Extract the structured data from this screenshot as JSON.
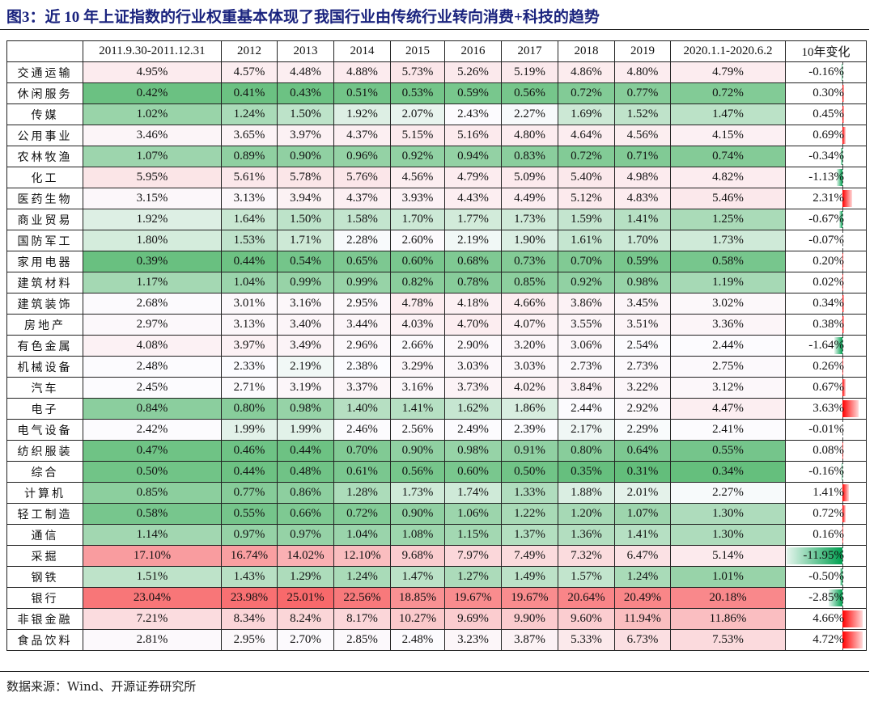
{
  "title": "图3：近 10 年上证指数的行业权重基本体现了我国行业由传统行业转向消费+科技的趋势",
  "source": "数据来源：Wind、开源证券研究所",
  "colors": {
    "low": "#63BE7B",
    "mid": "#FCFCFF",
    "high": "#F8696B",
    "bar_positive": "#FF0000",
    "bar_negative": "#00A050",
    "title": "#1A237E"
  },
  "table": {
    "headers": [
      "",
      "2011.9.30-2011.12.31",
      "2012",
      "2013",
      "2014",
      "2015",
      "2016",
      "2017",
      "2018",
      "2019",
      "2020.1.1-2020.6.2",
      "10年变化"
    ],
    "rows": [
      {
        "industry": "交通运输",
        "values": [
          "4.95%",
          "4.57%",
          "4.48%",
          "4.88%",
          "5.73%",
          "5.26%",
          "5.19%",
          "4.86%",
          "4.80%",
          "4.79%"
        ],
        "change": "-0.16%"
      },
      {
        "industry": "休闲服务",
        "values": [
          "0.42%",
          "0.41%",
          "0.43%",
          "0.51%",
          "0.53%",
          "0.59%",
          "0.56%",
          "0.72%",
          "0.77%",
          "0.72%"
        ],
        "change": "0.30%"
      },
      {
        "industry": "传媒",
        "values": [
          "1.02%",
          "1.24%",
          "1.50%",
          "1.92%",
          "2.07%",
          "2.43%",
          "2.27%",
          "1.69%",
          "1.52%",
          "1.47%"
        ],
        "change": "0.45%"
      },
      {
        "industry": "公用事业",
        "values": [
          "3.46%",
          "3.65%",
          "3.97%",
          "4.37%",
          "5.15%",
          "5.16%",
          "4.80%",
          "4.64%",
          "4.56%",
          "4.15%"
        ],
        "change": "0.69%"
      },
      {
        "industry": "农林牧渔",
        "values": [
          "1.07%",
          "0.89%",
          "0.90%",
          "0.96%",
          "0.92%",
          "0.94%",
          "0.83%",
          "0.72%",
          "0.71%",
          "0.74%"
        ],
        "change": "-0.34%"
      },
      {
        "industry": "化工",
        "values": [
          "5.95%",
          "5.61%",
          "5.78%",
          "5.76%",
          "4.56%",
          "4.79%",
          "5.09%",
          "5.40%",
          "4.98%",
          "4.82%"
        ],
        "change": "-1.13%"
      },
      {
        "industry": "医药生物",
        "values": [
          "3.15%",
          "3.13%",
          "3.94%",
          "4.37%",
          "3.93%",
          "4.43%",
          "4.49%",
          "5.12%",
          "4.83%",
          "5.46%"
        ],
        "change": "2.31%"
      },
      {
        "industry": "商业贸易",
        "values": [
          "1.92%",
          "1.64%",
          "1.50%",
          "1.58%",
          "1.70%",
          "1.77%",
          "1.73%",
          "1.59%",
          "1.41%",
          "1.25%"
        ],
        "change": "-0.67%"
      },
      {
        "industry": "国防军工",
        "values": [
          "1.80%",
          "1.53%",
          "1.71%",
          "2.28%",
          "2.60%",
          "2.19%",
          "1.90%",
          "1.61%",
          "1.70%",
          "1.73%"
        ],
        "change": "-0.07%"
      },
      {
        "industry": "家用电器",
        "values": [
          "0.39%",
          "0.44%",
          "0.54%",
          "0.65%",
          "0.60%",
          "0.68%",
          "0.73%",
          "0.70%",
          "0.59%",
          "0.58%"
        ],
        "change": "0.20%"
      },
      {
        "industry": "建筑材料",
        "values": [
          "1.17%",
          "1.04%",
          "0.99%",
          "0.99%",
          "0.82%",
          "0.78%",
          "0.85%",
          "0.92%",
          "0.98%",
          "1.19%"
        ],
        "change": "0.02%"
      },
      {
        "industry": "建筑装饰",
        "values": [
          "2.68%",
          "3.01%",
          "3.16%",
          "2.95%",
          "4.78%",
          "4.18%",
          "4.66%",
          "3.86%",
          "3.45%",
          "3.02%"
        ],
        "change": "0.34%"
      },
      {
        "industry": "房地产",
        "values": [
          "2.97%",
          "3.13%",
          "3.40%",
          "3.44%",
          "4.03%",
          "4.70%",
          "4.07%",
          "3.55%",
          "3.51%",
          "3.36%"
        ],
        "change": "0.38%"
      },
      {
        "industry": "有色金属",
        "values": [
          "4.08%",
          "3.97%",
          "3.49%",
          "2.96%",
          "2.66%",
          "2.90%",
          "3.20%",
          "3.06%",
          "2.54%",
          "2.44%"
        ],
        "change": "-1.64%"
      },
      {
        "industry": "机械设备",
        "values": [
          "2.48%",
          "2.33%",
          "2.19%",
          "2.38%",
          "3.29%",
          "3.03%",
          "3.03%",
          "2.73%",
          "2.73%",
          "2.75%"
        ],
        "change": "0.26%"
      },
      {
        "industry": "汽车",
        "values": [
          "2.45%",
          "2.71%",
          "3.19%",
          "3.37%",
          "3.16%",
          "3.73%",
          "4.02%",
          "3.84%",
          "3.22%",
          "3.12%"
        ],
        "change": "0.67%"
      },
      {
        "industry": "电子",
        "values": [
          "0.84%",
          "0.80%",
          "0.98%",
          "1.40%",
          "1.41%",
          "1.62%",
          "1.86%",
          "2.44%",
          "2.92%",
          "4.47%"
        ],
        "change": "3.63%"
      },
      {
        "industry": "电气设备",
        "values": [
          "2.42%",
          "1.99%",
          "1.99%",
          "2.46%",
          "2.56%",
          "2.49%",
          "2.39%",
          "2.17%",
          "2.29%",
          "2.41%"
        ],
        "change": "-0.01%"
      },
      {
        "industry": "纺织服装",
        "values": [
          "0.47%",
          "0.46%",
          "0.44%",
          "0.70%",
          "0.90%",
          "0.98%",
          "0.91%",
          "0.80%",
          "0.64%",
          "0.55%"
        ],
        "change": "0.08%"
      },
      {
        "industry": "综合",
        "values": [
          "0.50%",
          "0.44%",
          "0.48%",
          "0.61%",
          "0.56%",
          "0.60%",
          "0.50%",
          "0.35%",
          "0.31%",
          "0.34%"
        ],
        "change": "-0.16%"
      },
      {
        "industry": "计算机",
        "values": [
          "0.85%",
          "0.77%",
          "0.86%",
          "1.28%",
          "1.73%",
          "1.74%",
          "1.33%",
          "1.88%",
          "2.01%",
          "2.27%"
        ],
        "change": "1.41%"
      },
      {
        "industry": "轻工制造",
        "values": [
          "0.58%",
          "0.55%",
          "0.66%",
          "0.72%",
          "0.90%",
          "1.06%",
          "1.22%",
          "1.20%",
          "1.07%",
          "1.30%"
        ],
        "change": "0.72%"
      },
      {
        "industry": "通信",
        "values": [
          "1.14%",
          "0.97%",
          "0.97%",
          "1.04%",
          "1.08%",
          "1.15%",
          "1.37%",
          "1.36%",
          "1.41%",
          "1.30%"
        ],
        "change": "0.16%"
      },
      {
        "industry": "采掘",
        "values": [
          "17.10%",
          "16.74%",
          "14.02%",
          "12.10%",
          "9.68%",
          "7.97%",
          "7.49%",
          "7.32%",
          "6.47%",
          "5.14%"
        ],
        "change": "-11.95%"
      },
      {
        "industry": "钢铁",
        "values": [
          "1.51%",
          "1.43%",
          "1.29%",
          "1.24%",
          "1.47%",
          "1.27%",
          "1.49%",
          "1.57%",
          "1.24%",
          "1.01%"
        ],
        "change": "-0.50%"
      },
      {
        "industry": "银行",
        "values": [
          "23.04%",
          "23.98%",
          "25.01%",
          "22.56%",
          "18.85%",
          "19.67%",
          "19.67%",
          "20.64%",
          "20.49%",
          "20.18%"
        ],
        "change": "-2.85%"
      },
      {
        "industry": "非银金融",
        "values": [
          "7.21%",
          "8.34%",
          "8.24%",
          "8.17%",
          "10.27%",
          "9.69%",
          "9.90%",
          "9.60%",
          "11.94%",
          "11.86%"
        ],
        "change": "4.66%"
      },
      {
        "industry": "食品饮料",
        "values": [
          "2.81%",
          "2.95%",
          "2.70%",
          "2.85%",
          "2.48%",
          "3.23%",
          "3.87%",
          "5.33%",
          "6.73%",
          "7.53%"
        ],
        "change": "4.72%"
      }
    ]
  }
}
